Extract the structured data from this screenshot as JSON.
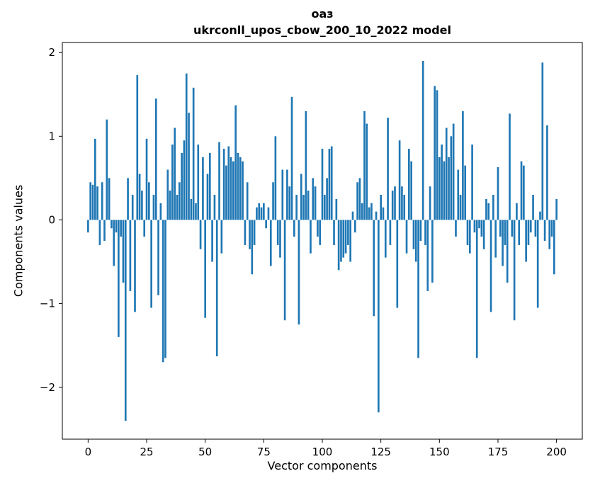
{
  "chart_data": {
    "type": "bar",
    "title_line1": "оаз",
    "title_line2": "ukrconll_upos_cbow_200_10_2022 model",
    "xlabel": "Vector components",
    "ylabel": "Components values",
    "bar_color": "#1f77b4",
    "bar_width": 0.8,
    "grid": false,
    "legend": "none",
    "x_min": 0,
    "x_max": 200,
    "xticks": [
      0,
      25,
      50,
      75,
      100,
      125,
      150,
      175,
      200
    ],
    "yticks": [
      -2,
      -1,
      0,
      1,
      2
    ],
    "xlim": [
      -11,
      211
    ],
    "ylim": [
      -2.62,
      2.12
    ],
    "values": [
      -0.15,
      0.45,
      0.42,
      0.97,
      0.4,
      -0.3,
      0.45,
      -0.25,
      1.2,
      0.5,
      -0.1,
      -0.55,
      -0.15,
      -1.4,
      -0.2,
      -0.75,
      -2.4,
      0.5,
      -0.85,
      0.3,
      -1.1,
      1.73,
      0.55,
      0.35,
      -0.2,
      0.97,
      0.45,
      -1.05,
      0.3,
      1.45,
      -0.9,
      0.2,
      -1.7,
      -1.65,
      0.6,
      0.35,
      0.9,
      1.1,
      0.3,
      0.45,
      0.8,
      0.95,
      1.75,
      1.28,
      0.25,
      1.58,
      0.2,
      0.9,
      -0.35,
      0.75,
      -1.17,
      0.55,
      0.8,
      -0.5,
      0.3,
      -1.63,
      0.93,
      -0.4,
      0.85,
      0.65,
      0.88,
      0.75,
      0.7,
      1.37,
      0.8,
      0.75,
      0.7,
      -0.3,
      0.45,
      -0.35,
      -0.65,
      -0.3,
      0.15,
      0.2,
      0.15,
      0.2,
      -0.1,
      0.15,
      -0.55,
      0.45,
      1.0,
      -0.3,
      -0.45,
      0.6,
      -1.2,
      0.6,
      0.4,
      1.47,
      -0.2,
      0.3,
      -1.25,
      0.55,
      0.3,
      1.3,
      0.35,
      -0.4,
      0.5,
      0.4,
      -0.2,
      -0.3,
      0.85,
      0.3,
      0.5,
      0.85,
      0.88,
      -0.3,
      0.25,
      -0.6,
      -0.5,
      -0.45,
      -0.4,
      -0.3,
      -0.5,
      0.1,
      -0.15,
      0.45,
      0.5,
      0.2,
      1.3,
      1.15,
      0.15,
      0.2,
      -1.15,
      0.1,
      -2.3,
      0.3,
      0.15,
      -0.45,
      1.22,
      -0.3,
      0.35,
      0.4,
      -1.05,
      0.95,
      0.4,
      0.3,
      -0.4,
      0.85,
      0.7,
      -0.35,
      -0.5,
      -1.65,
      -0.25,
      1.9,
      -0.3,
      -0.85,
      0.4,
      -0.75,
      1.6,
      1.55,
      0.75,
      0.9,
      0.7,
      1.1,
      0.75,
      1.0,
      1.15,
      -0.2,
      0.6,
      0.3,
      1.3,
      0.65,
      -0.3,
      -0.4,
      0.9,
      -0.15,
      -1.65,
      -0.1,
      -0.2,
      -0.35,
      0.25,
      0.2,
      -1.1,
      0.3,
      -0.45,
      0.63,
      -0.2,
      -0.55,
      -0.3,
      -0.75,
      1.27,
      -0.2,
      -1.2,
      0.2,
      -0.3,
      0.7,
      0.65,
      -0.5,
      -0.3,
      -0.15,
      0.3,
      -0.2,
      -1.05,
      0.1,
      1.88,
      -0.25,
      1.13,
      -0.35,
      -0.2,
      -0.65,
      0.25
    ]
  }
}
